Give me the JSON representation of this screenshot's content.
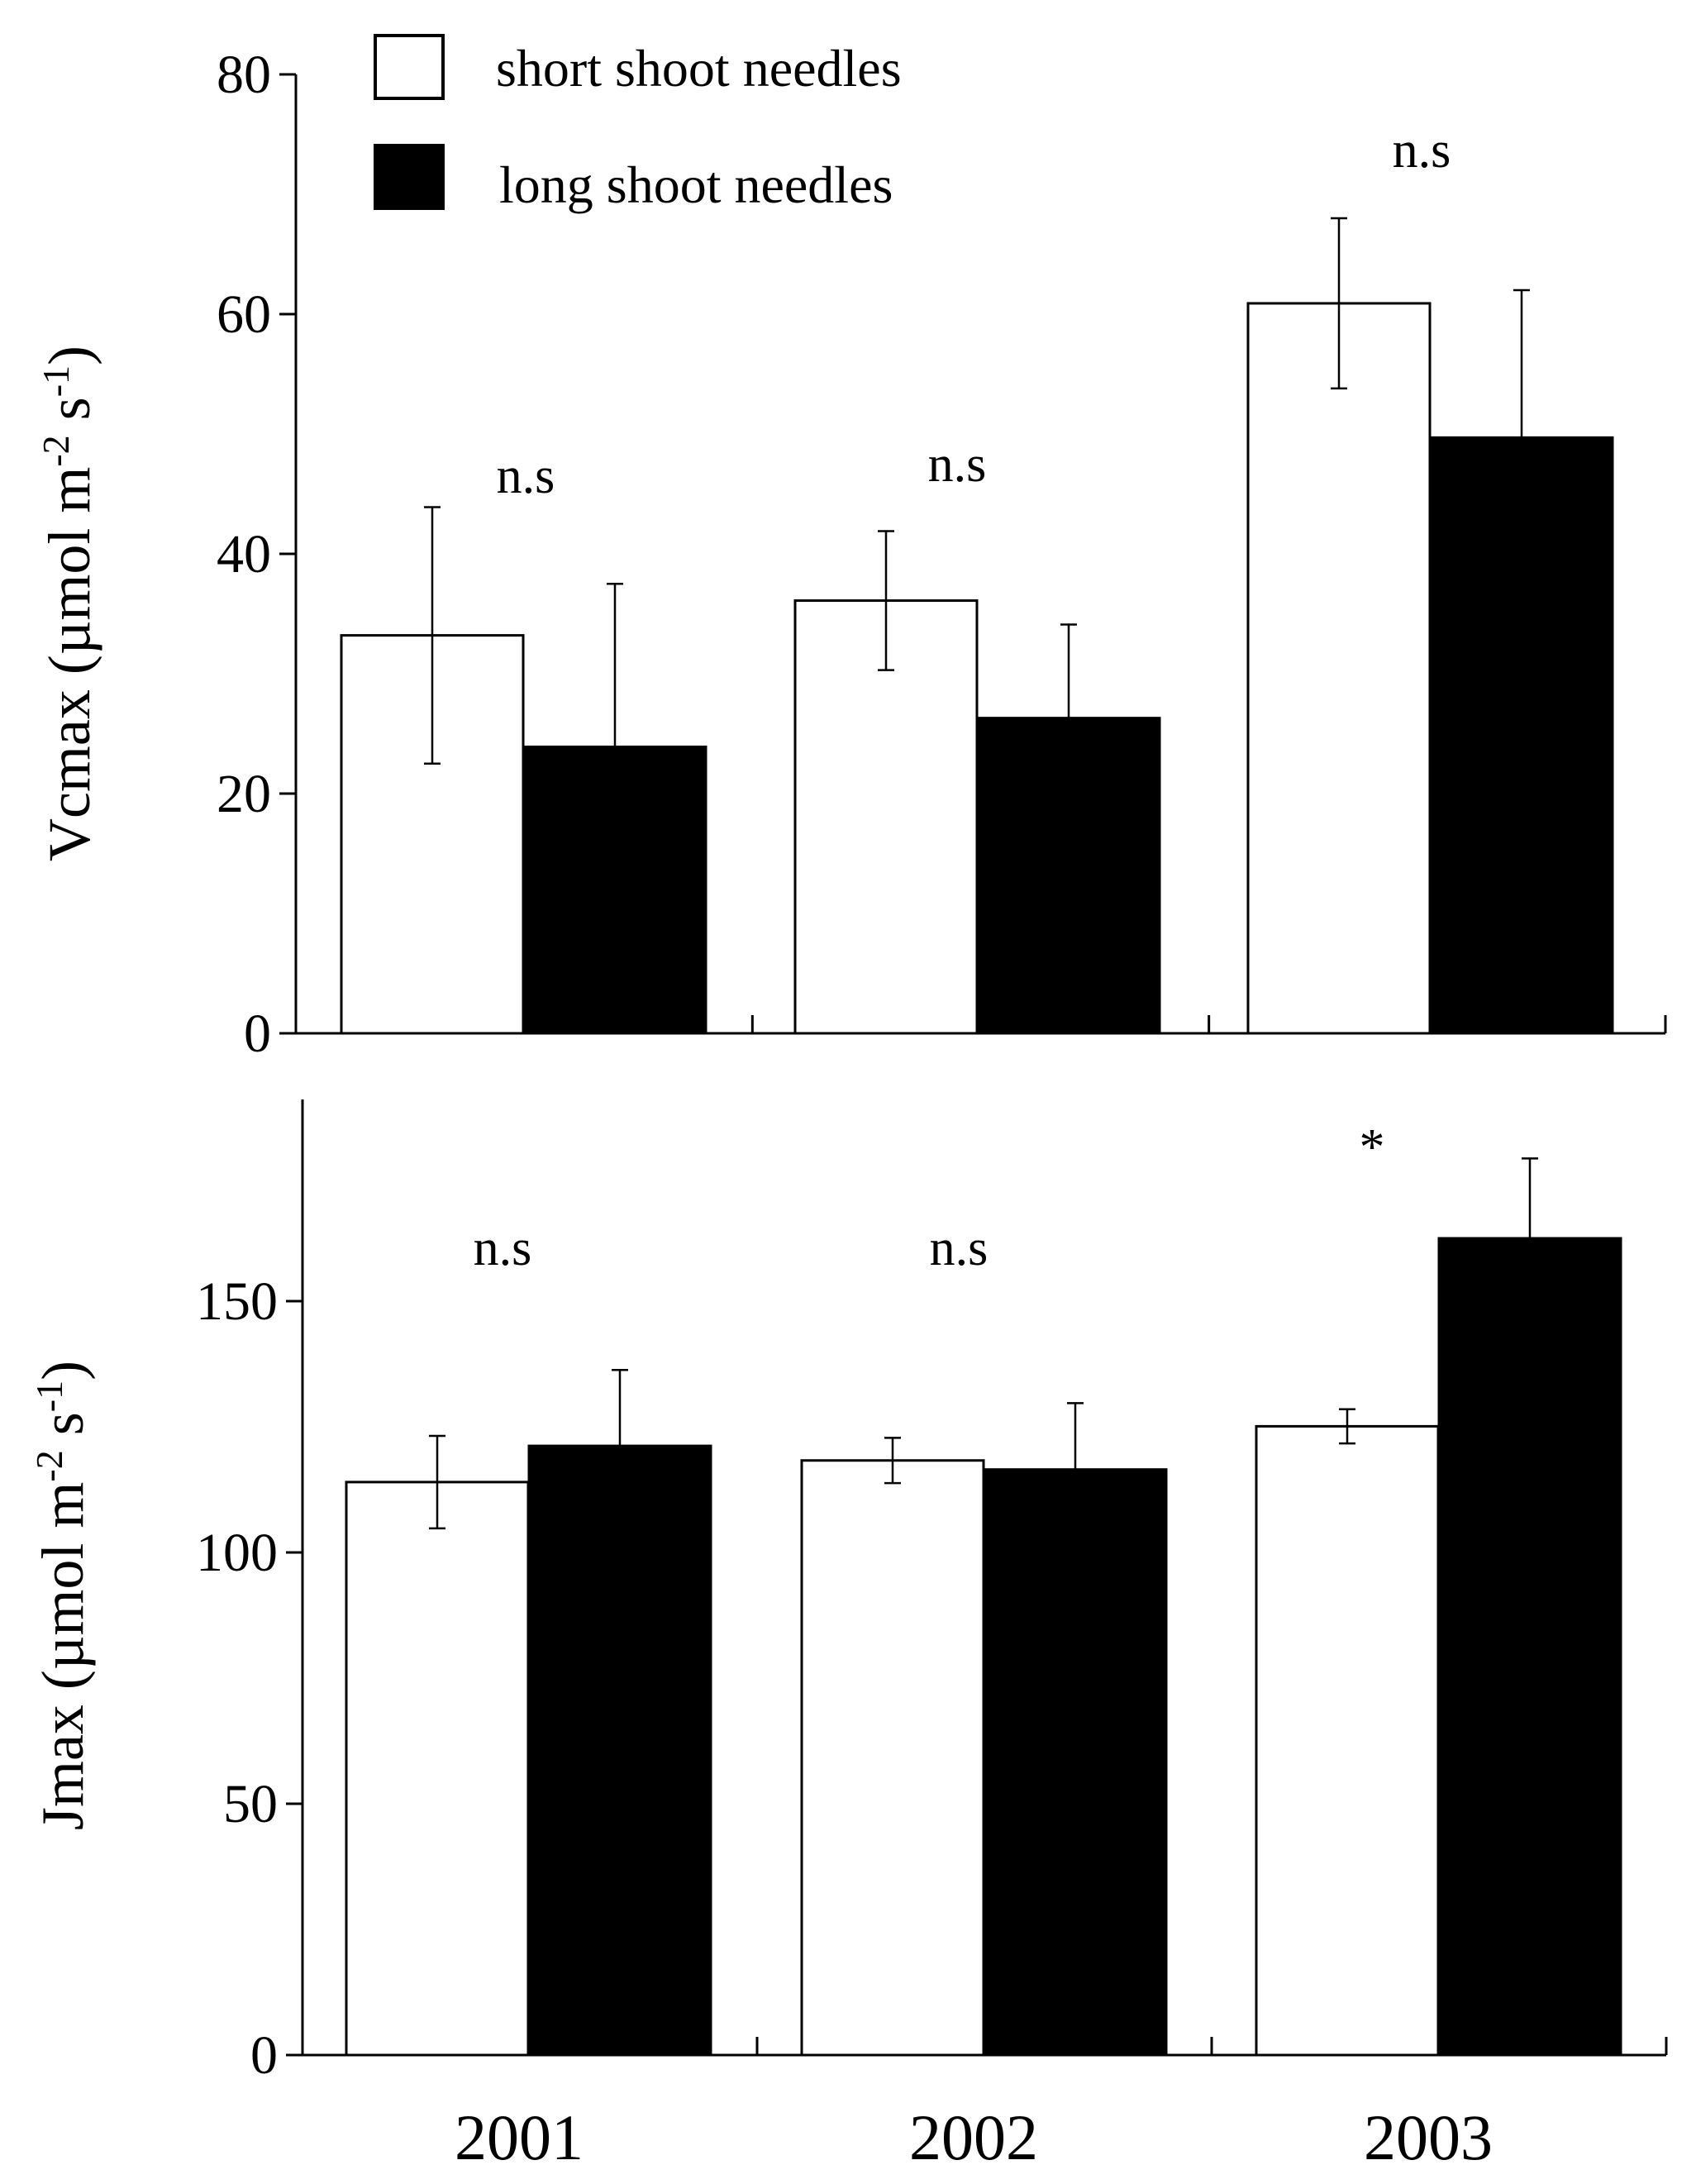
{
  "chart_data": [
    {
      "type": "bar",
      "panel": "top",
      "categories": [
        "2001",
        "2002",
        "2003"
      ],
      "ylim": [
        0,
        80
      ],
      "yticks": [
        0,
        20,
        40,
        60,
        80
      ],
      "ylabel": {
        "main": "Vcmax (µmol m",
        "exp1": "-2",
        "mid": " s",
        "exp2": "-1",
        "end": ")"
      },
      "series": [
        {
          "name": "short shoot needles",
          "color": "#ffffff",
          "values": [
            33.2,
            36.1,
            60.9
          ],
          "errors": [
            10.7,
            5.8,
            7.1
          ]
        },
        {
          "name": "long shoot needles",
          "color": "#000000",
          "values": [
            23.9,
            26.3,
            49.7
          ],
          "errors": [
            13.6,
            7.8,
            12.3
          ]
        }
      ],
      "annotations": [
        "n.s",
        "n.s",
        "n.s"
      ]
    },
    {
      "type": "bar",
      "panel": "bottom",
      "categories": [
        "2001",
        "2002",
        "2003"
      ],
      "ylim": [
        0,
        190
      ],
      "yticks": [
        0,
        50,
        100,
        150
      ],
      "ylabel": {
        "main": "Jmax (µmol m",
        "exp1": "-2",
        "mid": " s",
        "exp2": "-1",
        "end": ")"
      },
      "series": [
        {
          "name": "short shoot needles",
          "color": "#ffffff",
          "values": [
            114,
            118.3,
            125.1
          ],
          "errors": [
            9.2,
            4.5,
            3.4
          ]
        },
        {
          "name": "long shoot needles",
          "color": "#000000",
          "values": [
            121.2,
            116.5,
            162.5
          ],
          "errors": [
            15.1,
            13.2,
            15.9
          ]
        }
      ],
      "annotations": [
        "n.s",
        "n.s",
        "*"
      ]
    }
  ],
  "legend": {
    "items": [
      {
        "label": "short shoot needles",
        "color": "#ffffff"
      },
      {
        "label": "long shoot needles",
        "color": "#000000"
      }
    ]
  },
  "x_labels": [
    "2001",
    "2002",
    "2003"
  ]
}
